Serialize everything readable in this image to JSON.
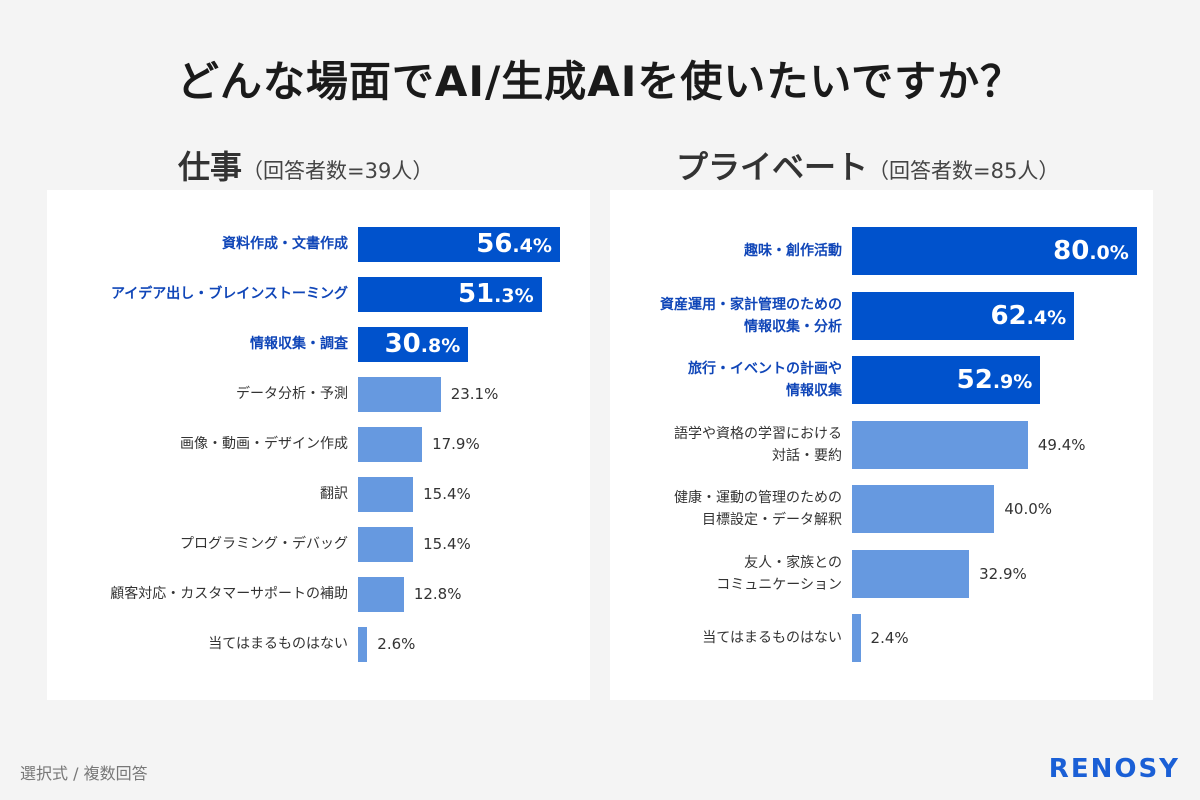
{
  "title": "どんな場面でAI/生成AIを使いたいですか？",
  "footer": "選択式 / 複数回答",
  "logo": "RENOSY",
  "colors": {
    "highlight_bar": "#0052cc",
    "normal_bar": "#6699e0",
    "highlight_label": "#1046b8",
    "background": "#f4f4f4"
  },
  "chart_data": [
    {
      "type": "bar",
      "orientation": "horizontal",
      "title": "仕事",
      "subtitle": "（回答者数=39人）",
      "unit": "%",
      "categories": [
        "資料作成・文書作成",
        "アイデア出し・ブレインストーミング",
        "情報収集・調査",
        "データ分析・予測",
        "画像・動画・デザイン作成",
        "翻訳",
        "プログラミング・デバッグ",
        "顧客対応・カスタマーサポートの補助",
        "当てはまるものはない"
      ],
      "values": [
        56.4,
        51.3,
        30.8,
        23.1,
        17.9,
        15.4,
        15.4,
        12.8,
        2.6
      ],
      "highlighted": [
        true,
        true,
        true,
        false,
        false,
        false,
        false,
        false,
        false
      ],
      "xlim": [
        0,
        100
      ],
      "grid": false
    },
    {
      "type": "bar",
      "orientation": "horizontal",
      "title": "プライベート",
      "subtitle": "（回答者数=85人）",
      "unit": "%",
      "categories": [
        "趣味・創作活動",
        "資産運用・家計管理のための\n情報収集・分析",
        "旅行・イベントの計画や\n情報収集",
        "語学や資格の学習における\n対話・要約",
        "健康・運動の管理のための\n目標設定・データ解釈",
        "友人・家族との\nコミュニケーション",
        "当てはまるものはない"
      ],
      "values": [
        80.0,
        62.4,
        52.9,
        49.4,
        40.0,
        32.9,
        2.4
      ],
      "highlighted": [
        true,
        true,
        true,
        false,
        false,
        false,
        false
      ],
      "xlim": [
        0,
        100
      ],
      "grid": false
    }
  ]
}
